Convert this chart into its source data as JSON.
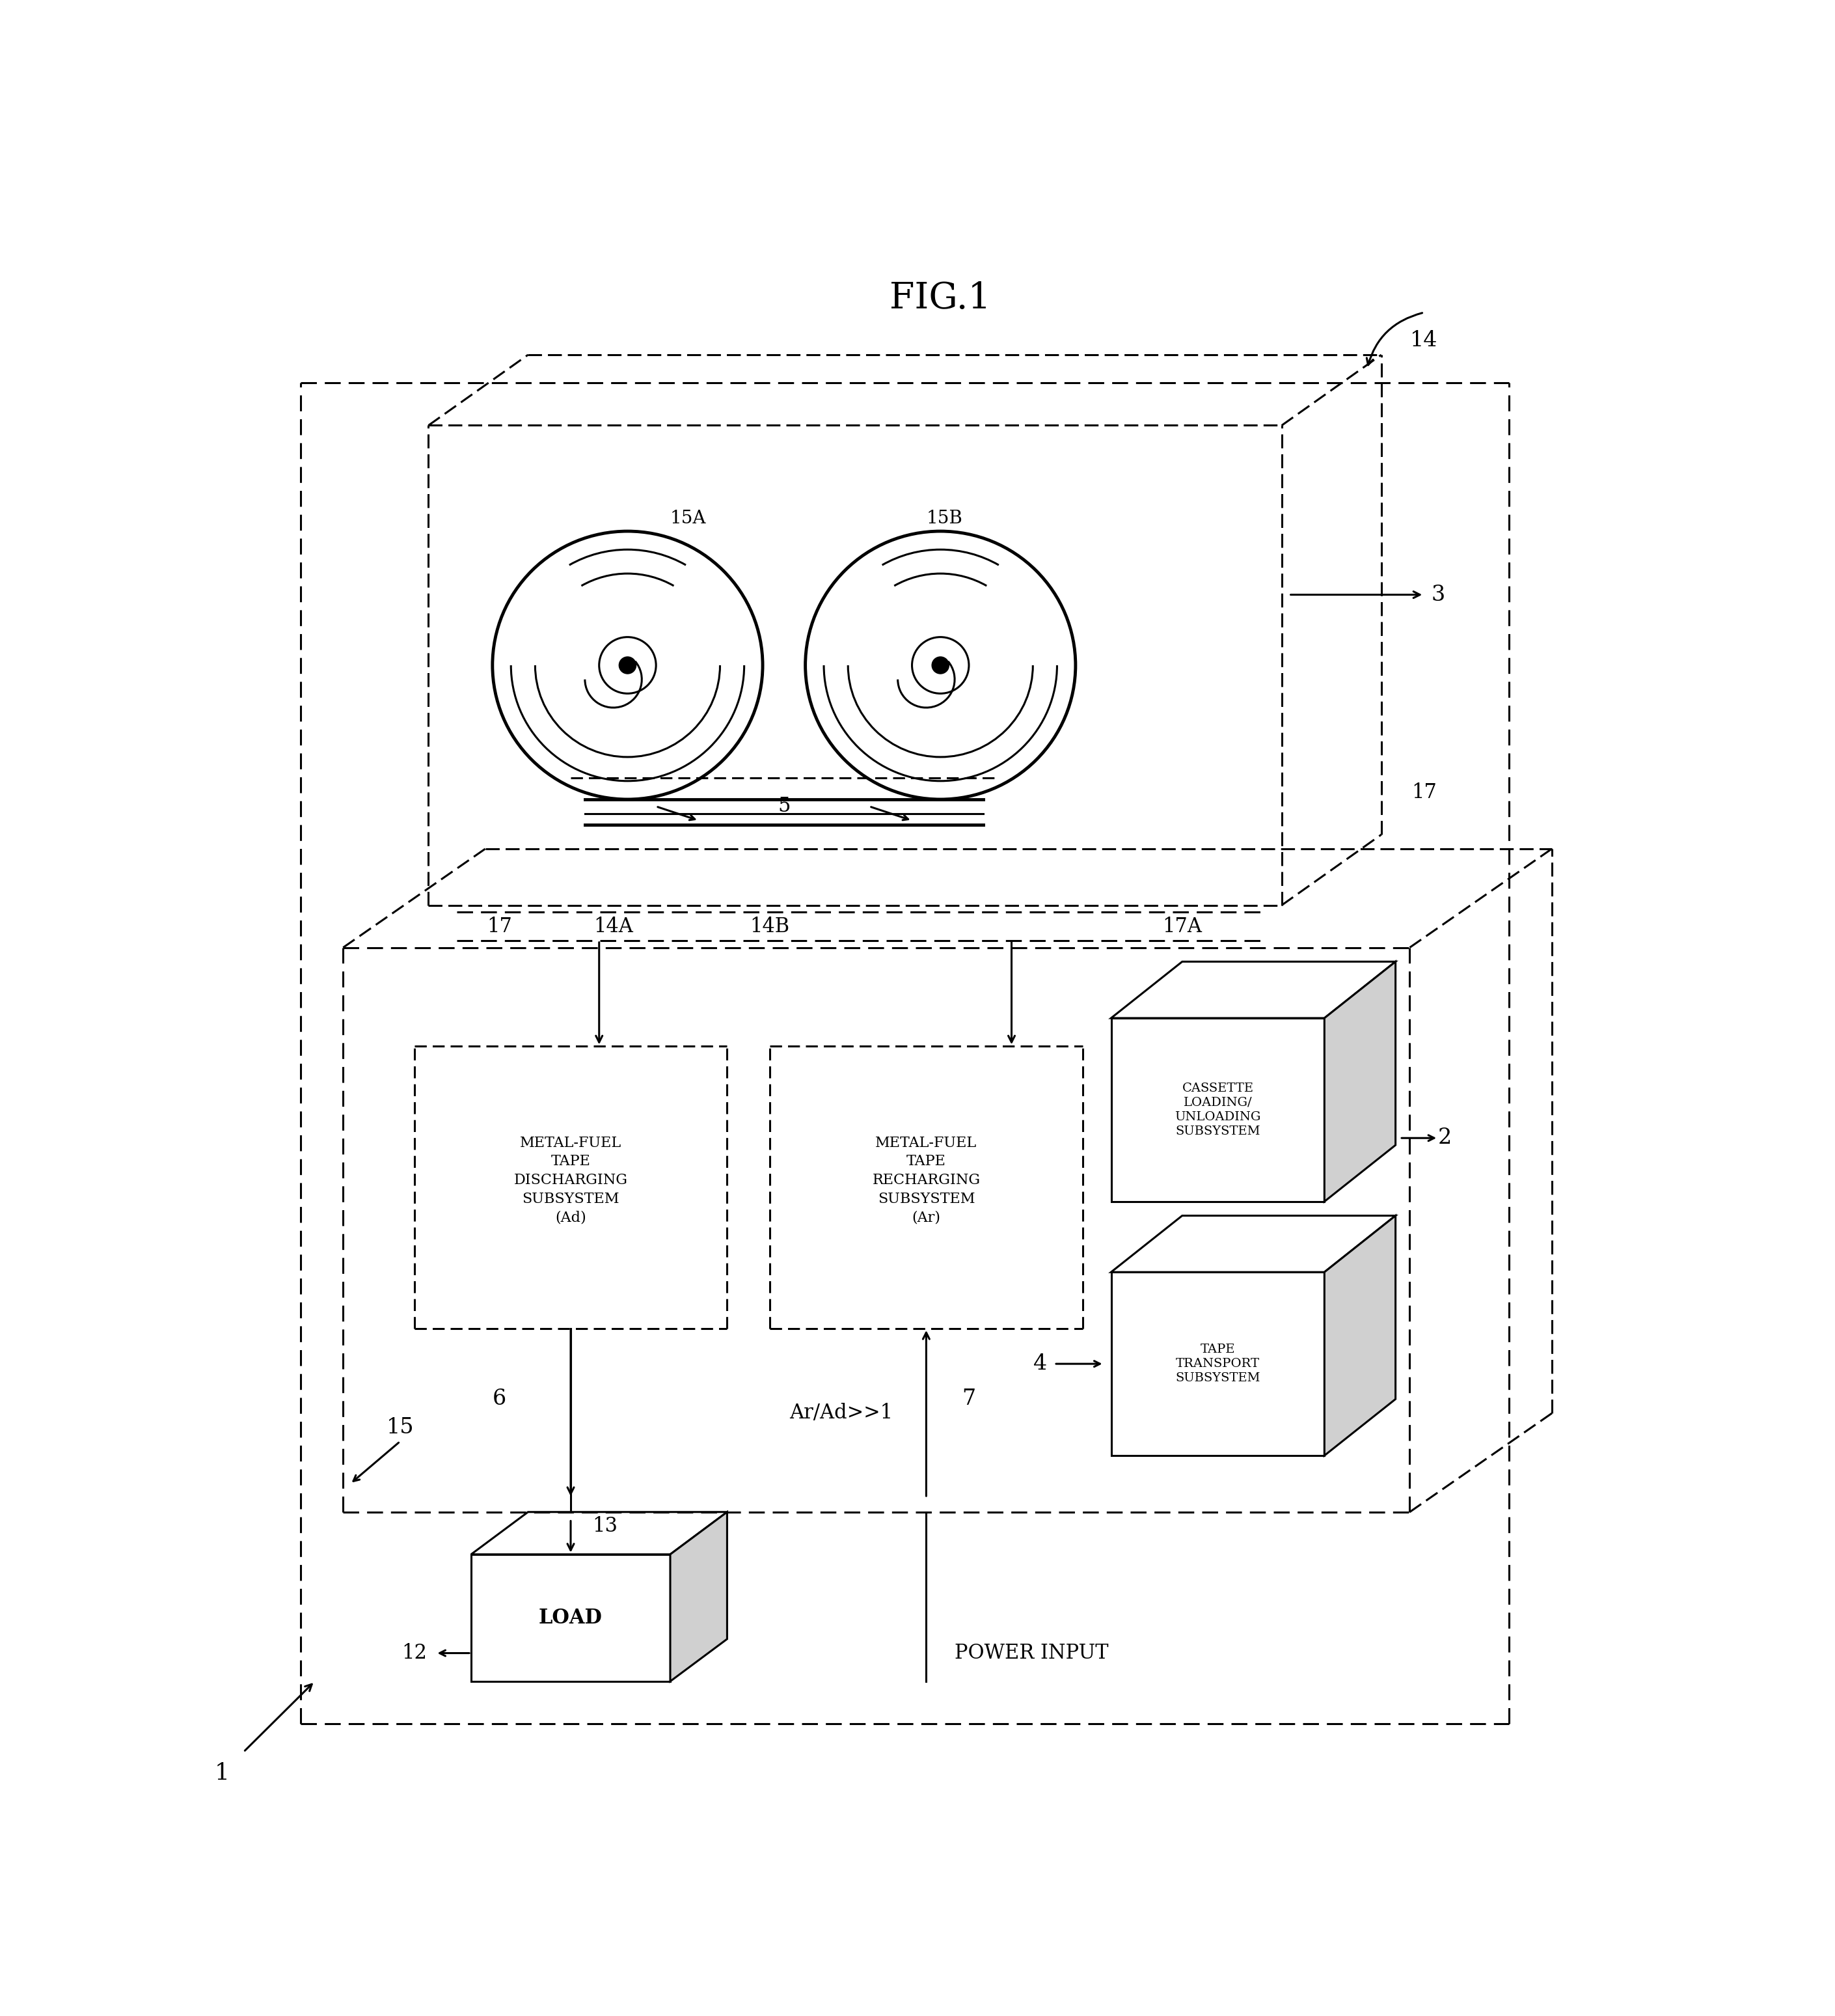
{
  "title": "FIG.1",
  "bg_color": "#ffffff",
  "line_color": "#000000",
  "fig_width": 28.2,
  "fig_height": 30.97,
  "labels": {
    "fig_title": "FIG.1",
    "label_14": "14",
    "label_3": "3",
    "label_15A": "15A",
    "label_15B": "15B",
    "label_5": "5",
    "label_17_left": "17",
    "label_17_right": "17",
    "label_17A": "17A",
    "label_14A": "14A",
    "label_14B": "14B",
    "label_1": "1",
    "label_15_arrow": "15",
    "label_2": "2",
    "label_4": "4",
    "label_6": "6",
    "label_7": "7",
    "label_12": "12",
    "label_13": "13",
    "box_discharge": "METAL-FUEL\nTAPE\nDISCHARGING\nSUBSYSTEM\n(Ad)",
    "box_recharge": "METAL-FUEL\nTAPE\nRECHARGING\nSUBSYSTEM\n(Ar)",
    "box_cassette": "CASSETTE\nLOADING/\nUNLOADING\nSUBSYSTEM",
    "box_transport": "TAPE\nTRANSPORT\nSUBSYSTEM",
    "box_load": "LOAD",
    "label_ar_ad": "Ar/Ad>>1",
    "label_power": "POWER INPUT"
  }
}
